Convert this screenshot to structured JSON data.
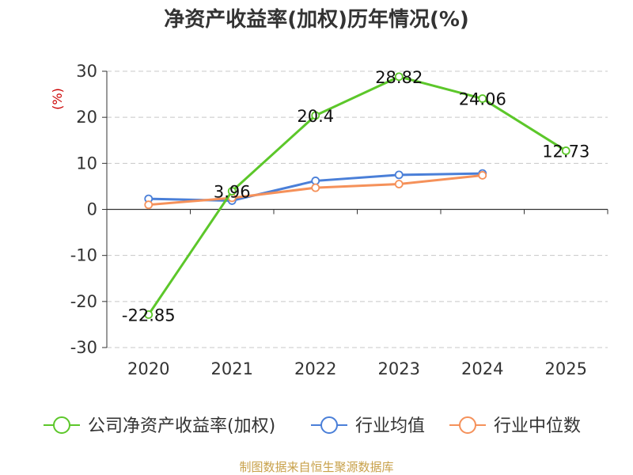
{
  "chart_data": {
    "type": "line",
    "title": "净资产收益率(加权)历年情况(%)",
    "ylabel": "(%)",
    "categories": [
      "2020",
      "2021",
      "2022",
      "2023",
      "2024",
      "2025"
    ],
    "ylim": [
      -30,
      30
    ],
    "yticks": [
      30,
      20,
      10,
      0,
      -10,
      -20,
      -30
    ],
    "grid": true,
    "legend_position": "bottom",
    "series": [
      {
        "name": "公司净资产收益率(加权)",
        "color": "#5cc72a",
        "values": [
          -22.85,
          3.96,
          20.4,
          28.82,
          24.06,
          12.73
        ],
        "labels": [
          "-22.85",
          "3.96",
          "20.4",
          "28.82",
          "24.06",
          "12.73"
        ]
      },
      {
        "name": "行业均值",
        "color": "#4a7fd8",
        "values": [
          2.3,
          1.9,
          6.2,
          7.5,
          7.8,
          null
        ]
      },
      {
        "name": "行业中位数",
        "color": "#f5915a",
        "values": [
          1.0,
          2.5,
          4.7,
          5.5,
          7.4,
          null
        ]
      }
    ]
  },
  "source": "制图数据来自恒生聚源数据库"
}
